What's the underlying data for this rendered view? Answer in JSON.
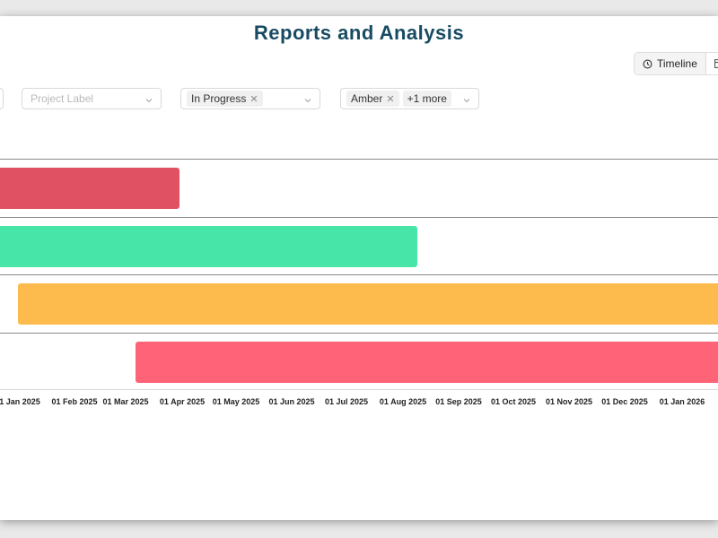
{
  "header": {
    "title": "Reports and Analysis"
  },
  "view_toggle": {
    "timeline_label": "Timeline",
    "active": "Timeline"
  },
  "filters": {
    "project_label": {
      "placeholder": "Project Label"
    },
    "status": {
      "tags": [
        "In Progress"
      ]
    },
    "rag": {
      "tags": [
        "Amber"
      ],
      "more_label": "+1 more"
    }
  },
  "timeline": {
    "axis_ticks": [
      "1 Jan 2025",
      "01 Feb 2025",
      "01 Mar 2025",
      "01 Apr 2025",
      "01 May 2025",
      "01 Jun 2025",
      "01 Jul 2025",
      "01 Aug 2025",
      "01 Sep 2025",
      "01 Oct 2025",
      "01 Nov 2025",
      "01 Dec 2025",
      "01 Jan 2026"
    ],
    "bars": [
      {
        "color": "#e05263"
      },
      {
        "color": "#47e6a8"
      },
      {
        "color": "#fdbb4e"
      },
      {
        "color": "#ff6378"
      }
    ]
  }
}
